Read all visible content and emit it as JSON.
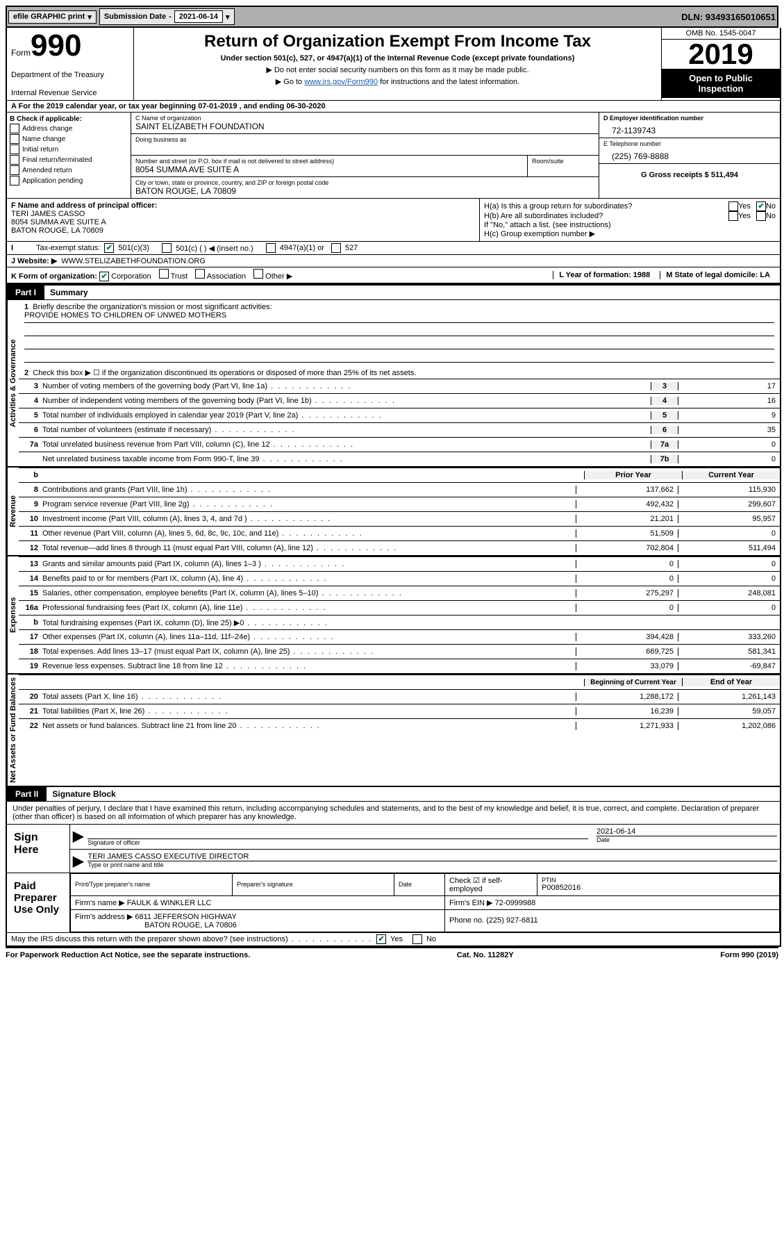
{
  "topbar": {
    "efile": "efile GRAPHIC print",
    "submission_label": "Submission Date",
    "submission_value": "2021-06-14",
    "dln": "DLN: 93493165010651"
  },
  "header": {
    "form_word": "Form",
    "form_num": "990",
    "dept1": "Department of the Treasury",
    "dept2": "Internal Revenue Service",
    "title": "Return of Organization Exempt From Income Tax",
    "subtitle": "Under section 501(c), 527, or 4947(a)(1) of the Internal Revenue Code (except private foundations)",
    "note1": "▶ Do not enter social security numbers on this form as it may be made public.",
    "note2_pre": "▶ Go to ",
    "note2_link": "www.irs.gov/Form990",
    "note2_post": " for instructions and the latest information.",
    "omb": "OMB No. 1545-0047",
    "year": "2019",
    "open_pub": "Open to Public Inspection"
  },
  "period": {
    "line": "A For the 2019 calendar year, or tax year beginning 07-01-2019    , and ending 06-30-2020"
  },
  "boxB": {
    "title": "B Check if applicable:",
    "items": [
      "Address change",
      "Name change",
      "Initial return",
      "Final return/terminated",
      "Amended return",
      "Application pending"
    ]
  },
  "boxC": {
    "name_label": "C Name of organization",
    "name": "SAINT ELIZABETH FOUNDATION",
    "dba_label": "Doing business as",
    "addr_label": "Number and street (or P.O. box if mail is not delivered to street address)",
    "room_label": "Room/suite",
    "addr": "8054 SUMMA AVE SUITE A",
    "city_label": "City or town, state or province, country, and ZIP or foreign postal code",
    "city": "BATON ROUGE, LA  70809"
  },
  "boxD": {
    "label": "D Employer identification number",
    "val": "72-1139743"
  },
  "boxE": {
    "label": "E Telephone number",
    "val": "(225) 769-8888"
  },
  "boxG": {
    "label": "G Gross receipts $ 511,494"
  },
  "boxF": {
    "label": "F  Name and address of principal officer:",
    "name": "TERI JAMES CASSO",
    "addr1": "8054 SUMMA AVE SUITE A",
    "addr2": "BATON ROUGE, LA  70809"
  },
  "boxH": {
    "a": "H(a)  Is this a group return for subordinates?",
    "b": "H(b)  Are all subordinates included?",
    "b_note": "If \"No,\" attach a list. (see instructions)",
    "c": "H(c)  Group exemption number ▶",
    "yes": "Yes",
    "no": "No"
  },
  "boxI": {
    "label": "Tax-exempt status:",
    "o1": "501(c)(3)",
    "o2": "501(c) (   ) ◀ (insert no.)",
    "o3": "4947(a)(1) or",
    "o4": "527"
  },
  "boxJ": {
    "label": "J    Website: ▶",
    "val": "WWW.STELIZABETHFOUNDATION.ORG"
  },
  "boxK": {
    "label": "K Form of organization:",
    "corp": "Corporation",
    "trust": "Trust",
    "assoc": "Association",
    "other": "Other ▶"
  },
  "boxL": {
    "label": "L Year of formation: 1988"
  },
  "boxM": {
    "label": "M State of legal domicile: LA"
  },
  "parts": {
    "p1_tag": "Part I",
    "p1_title": "Summary",
    "p2_tag": "Part II",
    "p2_title": "Signature Block"
  },
  "summary": {
    "side1": "Activities & Governance",
    "side2": "Revenue",
    "side3": "Expenses",
    "side4": "Net Assets or Fund Balances",
    "q1": "Briefly describe the organization's mission or most significant activities:",
    "mission": "PROVIDE HOMES TO CHILDREN OF UNWED MOTHERS",
    "q2": "Check this box ▶ ☐  if the organization discontinued its operations or disposed of more than 25% of its net assets.",
    "rows_gov": [
      {
        "n": "3",
        "d": "Number of voting members of the governing body (Part VI, line 1a)",
        "box": "3",
        "v": "17"
      },
      {
        "n": "4",
        "d": "Number of independent voting members of the governing body (Part VI, line 1b)",
        "box": "4",
        "v": "16"
      },
      {
        "n": "5",
        "d": "Total number of individuals employed in calendar year 2019 (Part V, line 2a)",
        "box": "5",
        "v": "9"
      },
      {
        "n": "6",
        "d": "Total number of volunteers (estimate if necessary)",
        "box": "6",
        "v": "35"
      },
      {
        "n": "7a",
        "d": "Total unrelated business revenue from Part VIII, column (C), line 12",
        "box": "7a",
        "v": "0"
      },
      {
        "n": "",
        "d": "Net unrelated business taxable income from Form 990-T, line 39",
        "box": "7b",
        "v": "0"
      }
    ],
    "hdr_b": "b",
    "hdr_prior": "Prior Year",
    "hdr_curr": "Current Year",
    "rows_rev": [
      {
        "n": "8",
        "d": "Contributions and grants (Part VIII, line 1h)",
        "p": "137,662",
        "c": "115,930"
      },
      {
        "n": "9",
        "d": "Program service revenue (Part VIII, line 2g)",
        "p": "492,432",
        "c": "299,607"
      },
      {
        "n": "10",
        "d": "Investment income (Part VIII, column (A), lines 3, 4, and 7d )",
        "p": "21,201",
        "c": "95,957"
      },
      {
        "n": "11",
        "d": "Other revenue (Part VIII, column (A), lines 5, 6d, 8c, 9c, 10c, and 11e)",
        "p": "51,509",
        "c": "0"
      },
      {
        "n": "12",
        "d": "Total revenue—add lines 8 through 11 (must equal Part VIII, column (A), line 12)",
        "p": "702,804",
        "c": "511,494"
      }
    ],
    "rows_exp": [
      {
        "n": "13",
        "d": "Grants and similar amounts paid (Part IX, column (A), lines 1–3 )",
        "p": "0",
        "c": "0"
      },
      {
        "n": "14",
        "d": "Benefits paid to or for members (Part IX, column (A), line 4)",
        "p": "0",
        "c": "0"
      },
      {
        "n": "15",
        "d": "Salaries, other compensation, employee benefits (Part IX, column (A), lines 5–10)",
        "p": "275,297",
        "c": "248,081"
      },
      {
        "n": "16a",
        "d": "Professional fundraising fees (Part IX, column (A), line 11e)",
        "p": "0",
        "c": "0"
      },
      {
        "n": "b",
        "d": "Total fundraising expenses (Part IX, column (D), line 25) ▶0",
        "p": "GRAY",
        "c": "GRAY"
      },
      {
        "n": "17",
        "d": "Other expenses (Part IX, column (A), lines 11a–11d, 11f–24e)",
        "p": "394,428",
        "c": "333,260"
      },
      {
        "n": "18",
        "d": "Total expenses. Add lines 13–17 (must equal Part IX, column (A), line 25)",
        "p": "669,725",
        "c": "581,341"
      },
      {
        "n": "19",
        "d": "Revenue less expenses. Subtract line 18 from line 12",
        "p": "33,079",
        "c": "-69,847"
      }
    ],
    "hdr_begin": "Beginning of Current Year",
    "hdr_end": "End of Year",
    "rows_na": [
      {
        "n": "20",
        "d": "Total assets (Part X, line 16)",
        "p": "1,288,172",
        "c": "1,261,143"
      },
      {
        "n": "21",
        "d": "Total liabilities (Part X, line 26)",
        "p": "16,239",
        "c": "59,057"
      },
      {
        "n": "22",
        "d": "Net assets or fund balances. Subtract line 21 from line 20",
        "p": "1,271,933",
        "c": "1,202,086"
      }
    ]
  },
  "sig": {
    "perjury": "Under penalties of perjury, I declare that I have examined this return, including accompanying schedules and statements, and to the best of my knowledge and belief, it is true, correct, and complete. Declaration of preparer (other than officer) is based on all information of which preparer has any knowledge.",
    "sign_here": "Sign Here",
    "sig_officer": "Signature of officer",
    "date_label": "Date",
    "date_val": "2021-06-14",
    "officer_name": "TERI JAMES CASSO  EXECUTIVE DIRECTOR",
    "type_name": "Type or print name and title",
    "paid": "Paid Preparer Use Only",
    "pt_name_label": "Print/Type preparer's name",
    "pt_sig_label": "Preparer's signature",
    "pt_date_label": "Date",
    "pt_check": "Check ☑ if self-employed",
    "ptin_label": "PTIN",
    "ptin_val": "P00852016",
    "firm_name_label": "Firm's name    ▶",
    "firm_name": "FAULK & WINKLER LLC",
    "firm_ein_label": "Firm's EIN ▶",
    "firm_ein": "72-0999988",
    "firm_addr_label": "Firm's address ▶",
    "firm_addr1": "6811 JEFFERSON HIGHWAY",
    "firm_addr2": "BATON ROUGE, LA  70806",
    "phone_label": "Phone no.",
    "phone_val": "(225) 927-6811",
    "discuss": "May the IRS discuss this return with the preparer shown above? (see instructions)",
    "yes": "Yes",
    "no": "No"
  },
  "footer": {
    "left": "For Paperwork Reduction Act Notice, see the separate instructions.",
    "mid": "Cat. No. 11282Y",
    "right": "Form 990 (2019)"
  }
}
